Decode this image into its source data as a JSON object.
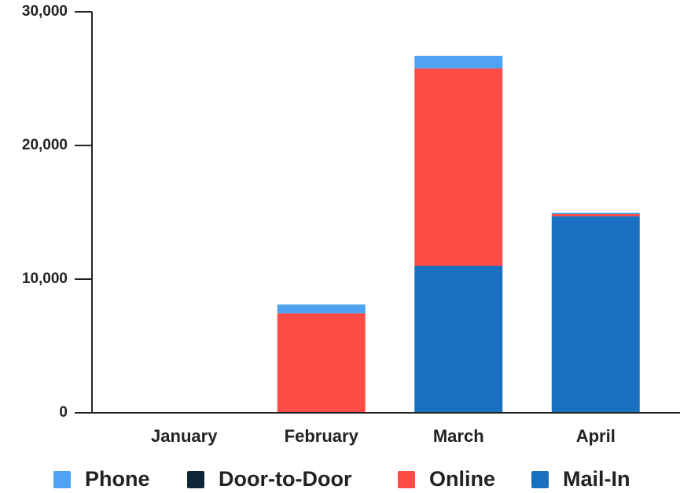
{
  "chart_data": {
    "type": "stacked-bar",
    "categories": [
      "January",
      "February",
      "March",
      "April"
    ],
    "series": [
      {
        "name": "Phone",
        "color": "#4fa3f2",
        "values": [
          0,
          650,
          950,
          80
        ]
      },
      {
        "name": "Door-to-Door",
        "color": "#0f2538",
        "values": [
          0,
          0,
          0,
          0
        ]
      },
      {
        "name": "Online",
        "color": "#ff4d45",
        "values": [
          0,
          7450,
          14760,
          180
        ]
      },
      {
        "name": "Mail-In",
        "color": "#1a70c0",
        "values": [
          0,
          0,
          11000,
          14700
        ]
      }
    ],
    "ylim": [
      0,
      30000
    ],
    "yticks": [
      0,
      {
        "value": 10000,
        "label": "10,000"
      },
      {
        "value": 20000,
        "label": "20,000"
      },
      {
        "value": 30000,
        "label": "30,000"
      }
    ],
    "legend": "bottom"
  }
}
